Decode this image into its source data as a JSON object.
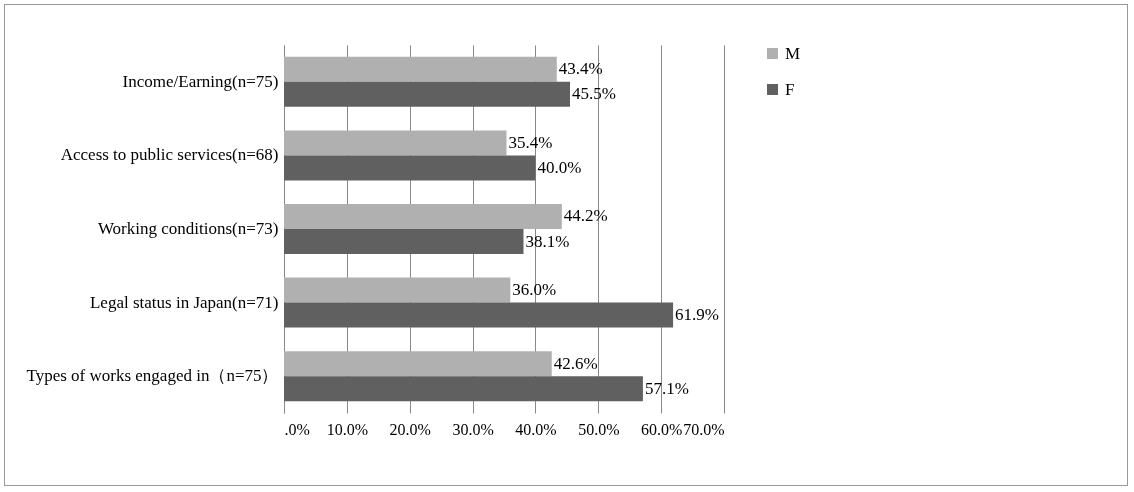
{
  "chart_data": {
    "type": "bar",
    "orientation": "horizontal",
    "categories": [
      "Income/Earning(n=75)",
      "Access to public services(n=68)",
      "Working conditions(n=73)",
      "Legal status in Japan(n=71)",
      "Types of works engaged in（n=75）"
    ],
    "series": [
      {
        "name": "M",
        "color": "#b0b0b0",
        "values": [
          43.4,
          35.4,
          44.2,
          36.0,
          42.6
        ],
        "value_labels": [
          "43.4%",
          "35.4%",
          "44.2%",
          "36.0%",
          "42.6%"
        ]
      },
      {
        "name": "F",
        "color": "#606060",
        "values": [
          45.5,
          40.0,
          38.1,
          61.9,
          57.1
        ],
        "value_labels": [
          "45.5%",
          "40.0%",
          "38.1%",
          "61.9%",
          "57.1%"
        ]
      }
    ],
    "xlim": [
      0,
      70
    ],
    "xticks": [
      {
        "value": 0,
        "label": ".0%"
      },
      {
        "value": 10,
        "label": "10.0%"
      },
      {
        "value": 20,
        "label": "20.0%"
      },
      {
        "value": 30,
        "label": "30.0%"
      },
      {
        "value": 40,
        "label": "40.0%"
      },
      {
        "value": 50,
        "label": "50.0%"
      },
      {
        "value": 60,
        "label": "60.0%"
      },
      {
        "value": 70,
        "label": "70.0%"
      }
    ],
    "grid": "x",
    "legend": "right"
  }
}
